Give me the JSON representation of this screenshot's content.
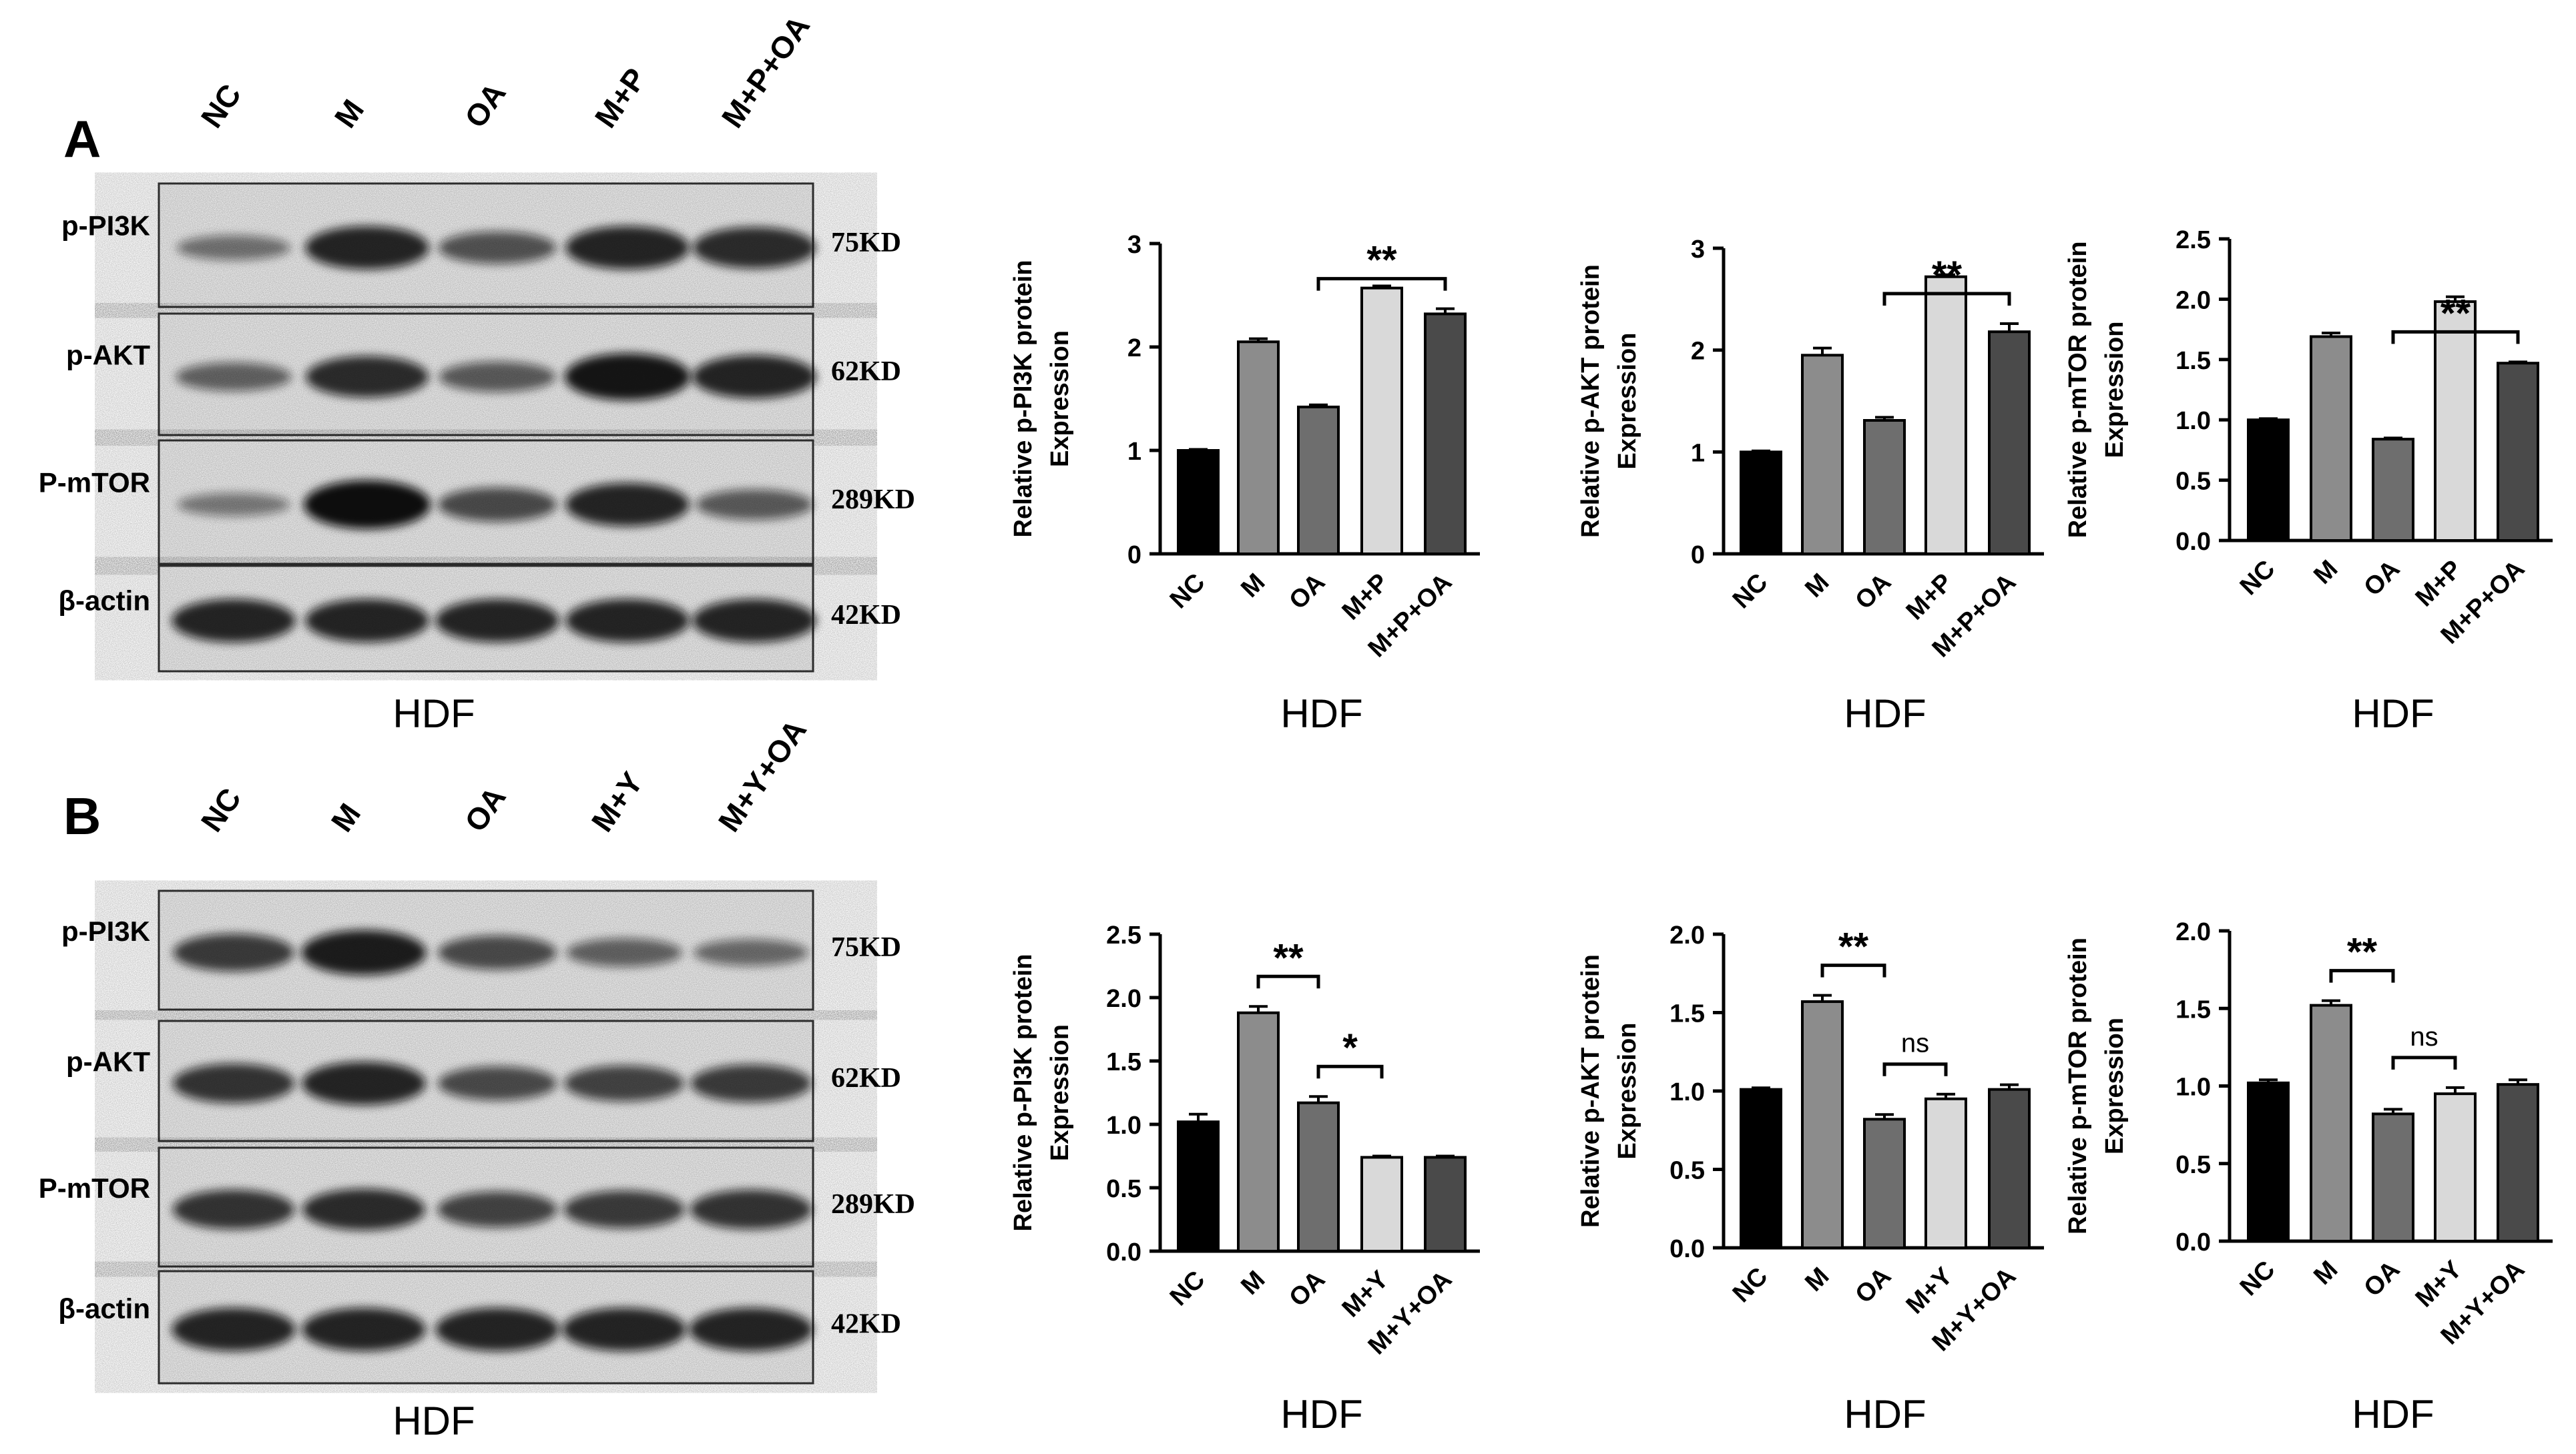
{
  "panels": [
    {
      "letter": "A",
      "lanes": [
        "NC",
        "M",
        "OA",
        "M+P",
        "M+P+OA"
      ],
      "rows": [
        {
          "label": "p-PI3K",
          "kd": "75KD",
          "intensity": [
            0.35,
            0.85,
            0.55,
            0.85,
            0.8
          ]
        },
        {
          "label": "p-AKT",
          "kd": "62KD",
          "intensity": [
            0.45,
            0.8,
            0.5,
            0.95,
            0.85
          ]
        },
        {
          "label": "P-mTOR",
          "kd": "289KD",
          "intensity": [
            0.3,
            1.0,
            0.6,
            0.85,
            0.5
          ]
        },
        {
          "label": "β-actin",
          "kd": "42KD",
          "intensity": [
            0.85,
            0.85,
            0.85,
            0.85,
            0.85
          ]
        }
      ],
      "blot_caption": "HDF"
    },
    {
      "letter": "B",
      "lanes": [
        "NC",
        "M",
        "OA",
        "M+Y",
        "M+Y+OA"
      ],
      "rows": [
        {
          "label": "p-PI3K",
          "kd": "75KD",
          "intensity": [
            0.7,
            0.9,
            0.6,
            0.45,
            0.4
          ]
        },
        {
          "label": "p-AKT",
          "kd": "62KD",
          "intensity": [
            0.75,
            0.85,
            0.6,
            0.65,
            0.7
          ]
        },
        {
          "label": "P-mTOR",
          "kd": "289KD",
          "intensity": [
            0.75,
            0.8,
            0.65,
            0.7,
            0.75
          ]
        },
        {
          "label": "β-actin",
          "kd": "42KD",
          "intensity": [
            0.85,
            0.85,
            0.85,
            0.85,
            0.85
          ]
        }
      ],
      "blot_caption": "HDF"
    }
  ],
  "chart_data": [
    {
      "type": "bar",
      "panel": "A",
      "categories": [
        "NC",
        "M",
        "OA",
        "M+P",
        "M+P+OA"
      ],
      "values": [
        1.0,
        2.05,
        1.42,
        2.57,
        2.32
      ],
      "errors": [
        0.01,
        0.03,
        0.02,
        0.02,
        0.05
      ],
      "ylabel": [
        "Relative p-PI3K protein",
        "Expression"
      ],
      "ylim": [
        0,
        3
      ],
      "yticks": [
        "0",
        "1",
        "2",
        "3"
      ],
      "sig": [
        {
          "from": 2,
          "to": 4,
          "label": "**"
        }
      ],
      "caption": "HDF",
      "colors": [
        "#000000",
        "#8c8c8c",
        "#6e6e6e",
        "#d9d9d9",
        "#4a4a4a"
      ]
    },
    {
      "type": "bar",
      "panel": "A",
      "categories": [
        "NC",
        "M",
        "OA",
        "M+P",
        "M+P+OA"
      ],
      "values": [
        1.0,
        1.95,
        1.31,
        2.72,
        2.18
      ],
      "errors": [
        0.01,
        0.07,
        0.03,
        0.02,
        0.08
      ],
      "ylabel": [
        "Relative p-AKT protein",
        "Expression"
      ],
      "ylim": [
        0,
        3
      ],
      "yticks": [
        "0",
        "1",
        "2",
        "3"
      ],
      "sig": [
        {
          "from": 2,
          "to": 4,
          "label": "**"
        }
      ],
      "caption": "HDF",
      "colors": [
        "#000000",
        "#8c8c8c",
        "#6e6e6e",
        "#d9d9d9",
        "#4a4a4a"
      ]
    },
    {
      "type": "bar",
      "panel": "A",
      "categories": [
        "NC",
        "M",
        "OA",
        "M+P",
        "M+P+OA"
      ],
      "values": [
        1.0,
        1.69,
        0.84,
        1.98,
        1.47
      ],
      "errors": [
        0.01,
        0.03,
        0.01,
        0.04,
        0.01
      ],
      "ylabel": [
        "Relative p-mTOR protein",
        "Expression"
      ],
      "ylim": [
        0,
        2.5
      ],
      "yticks": [
        "0.0",
        "0.5",
        "1.0",
        "1.5",
        "2.0",
        "2.5"
      ],
      "sig": [
        {
          "from": 2,
          "to": 4,
          "label": "**"
        }
      ],
      "caption": "HDF",
      "colors": [
        "#000000",
        "#8c8c8c",
        "#6e6e6e",
        "#d9d9d9",
        "#4a4a4a"
      ]
    },
    {
      "type": "bar",
      "panel": "B",
      "categories": [
        "NC",
        "M",
        "OA",
        "M+Y",
        "M+Y+OA"
      ],
      "values": [
        1.02,
        1.88,
        1.17,
        0.74,
        0.74
      ],
      "errors": [
        0.06,
        0.05,
        0.05,
        0.01,
        0.01
      ],
      "ylabel": [
        "Relative p-PI3K protein",
        "Expression"
      ],
      "ylim": [
        0,
        2.5
      ],
      "yticks": [
        "0.0",
        "0.5",
        "1.0",
        "1.5",
        "2.0",
        "2.5"
      ],
      "sig": [
        {
          "from": 1,
          "to": 2,
          "label": "**"
        },
        {
          "from": 2,
          "to": 3,
          "label": "*"
        }
      ],
      "caption": "HDF",
      "colors": [
        "#000000",
        "#8c8c8c",
        "#6e6e6e",
        "#d9d9d9",
        "#4a4a4a"
      ]
    },
    {
      "type": "bar",
      "panel": "B",
      "categories": [
        "NC",
        "M",
        "OA",
        "M+Y",
        "M+Y+OA"
      ],
      "values": [
        1.01,
        1.57,
        0.82,
        0.95,
        1.01
      ],
      "errors": [
        0.01,
        0.04,
        0.03,
        0.03,
        0.03
      ],
      "ylabel": [
        "Relative p-AKT protein",
        "Expression"
      ],
      "ylim": [
        0,
        2.0
      ],
      "yticks": [
        "0.0",
        "0.5",
        "1.0",
        "1.5",
        "2.0"
      ],
      "sig": [
        {
          "from": 1,
          "to": 2,
          "label": "**"
        },
        {
          "from": 2,
          "to": 3,
          "label": "ns"
        }
      ],
      "caption": "HDF",
      "colors": [
        "#000000",
        "#8c8c8c",
        "#6e6e6e",
        "#d9d9d9",
        "#4a4a4a"
      ]
    },
    {
      "type": "bar",
      "panel": "B",
      "categories": [
        "NC",
        "M",
        "OA",
        "M+Y",
        "M+Y+OA"
      ],
      "values": [
        1.02,
        1.52,
        0.82,
        0.95,
        1.01
      ],
      "errors": [
        0.02,
        0.03,
        0.03,
        0.04,
        0.03
      ],
      "ylabel": [
        "Relative p-mTOR protein",
        "Expression"
      ],
      "ylim": [
        0,
        2.0
      ],
      "yticks": [
        "0.0",
        "0.5",
        "1.0",
        "1.5",
        "2.0"
      ],
      "sig": [
        {
          "from": 1,
          "to": 2,
          "label": "**"
        },
        {
          "from": 2,
          "to": 3,
          "label": "ns"
        }
      ],
      "caption": "HDF",
      "colors": [
        "#000000",
        "#8c8c8c",
        "#6e6e6e",
        "#d9d9d9",
        "#4a4a4a"
      ]
    }
  ]
}
